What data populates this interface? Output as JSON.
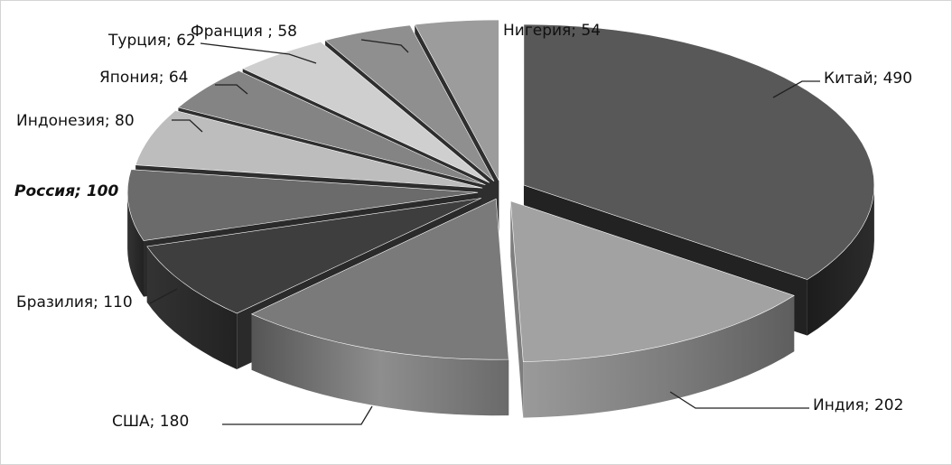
{
  "chart_data": {
    "type": "pie",
    "title": "",
    "style": "3d-exploded",
    "slices": [
      {
        "label": "Китай; 490",
        "name": "Китай",
        "value": 490,
        "top": "#585858",
        "side": "#222222",
        "emphasis": false
      },
      {
        "label": "Индия; 202",
        "name": "Индия",
        "value": 202,
        "top": "#a2a2a2",
        "side": "#7e7e7e",
        "emphasis": false
      },
      {
        "label": "США; 180",
        "name": "США",
        "value": 180,
        "top": "#7a7a7a",
        "side": "#7e7e7e",
        "emphasis": false
      },
      {
        "label": "Бразилия; 110",
        "name": "Бразилия",
        "value": 110,
        "top": "#3e3e3e",
        "side": "#2a2a2a",
        "emphasis": false
      },
      {
        "label": "Россия; 100",
        "name": "Россия",
        "value": 100,
        "top": "#6b6b6b",
        "side": "#2a2a2a",
        "emphasis": true
      },
      {
        "label": "Индонезия; 80",
        "name": "Индонезия",
        "value": 80,
        "top": "#bdbdbd",
        "side": "#2e2e2e",
        "emphasis": false
      },
      {
        "label": "Япония; 64",
        "name": "Япония",
        "value": 64,
        "top": "#848484",
        "side": "#2e2e2e",
        "emphasis": false
      },
      {
        "label": "Турция; 62",
        "name": "Турция",
        "value": 62,
        "top": "#cfcfcf",
        "side": "#2e2e2e",
        "emphasis": false
      },
      {
        "label": "Франция ; 58",
        "name": "Франция",
        "value": 58,
        "top": "#8f8f8f",
        "side": "#2e2e2e",
        "emphasis": false
      },
      {
        "label": "Нигерия; 54",
        "name": "Нигерия",
        "value": 54,
        "top": "#9c9c9c",
        "side": "#2e2e2e",
        "emphasis": false
      }
    ]
  }
}
